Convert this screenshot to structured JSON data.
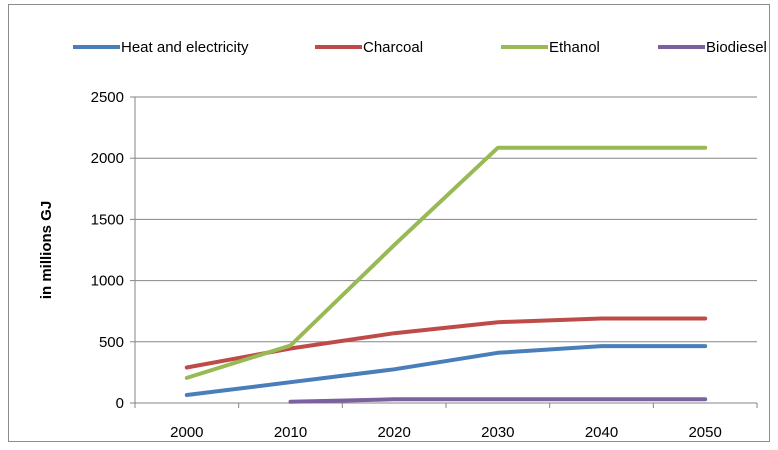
{
  "chart_data": {
    "type": "line",
    "title": "",
    "xlabel": "",
    "ylabel": "in millions GJ",
    "x": [
      "2000",
      "2010",
      "2020",
      "2030",
      "2040",
      "2050"
    ],
    "ylim": [
      0,
      2500
    ],
    "yticks": [
      0,
      500,
      1000,
      1500,
      2000,
      2500
    ],
    "grid": "horizontal",
    "legend_position": "top",
    "series": [
      {
        "name": "Heat and electricity",
        "color": "#4a7ebb",
        "values": [
          65,
          170,
          275,
          410,
          465,
          465
        ]
      },
      {
        "name": "Charcoal",
        "color": "#be4b48",
        "values": [
          290,
          445,
          570,
          660,
          690,
          690
        ]
      },
      {
        "name": "Ethanol",
        "color": "#98b954",
        "values": [
          205,
          470,
          1290,
          2085,
          2085,
          2085
        ]
      },
      {
        "name": "Biodiesel",
        "color": "#7d60a0",
        "values": [
          null,
          10,
          30,
          30,
          30,
          30
        ]
      }
    ]
  }
}
